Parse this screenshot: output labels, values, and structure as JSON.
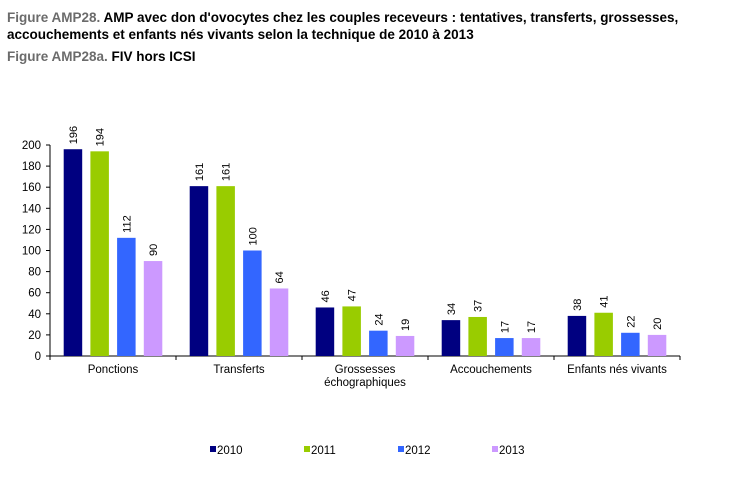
{
  "header": {
    "figure_prefix": "Figure AMP28.",
    "figure_title": " AMP avec don d'ovocytes chez les couples receveurs : tentatives, transferts, grossesses, accouchements et enfants nés vivants selon la technique de 2010 à 2013",
    "subfigure_prefix": "Figure AMP28a.",
    "subfigure_title": " FIV hors ICSI"
  },
  "chart_data": {
    "type": "bar",
    "categories": [
      [
        "Ponctions"
      ],
      [
        "Transferts"
      ],
      [
        "Grossesses",
        "échographiques"
      ],
      [
        "Accouchements"
      ],
      [
        "Enfants nés vivants"
      ]
    ],
    "series": [
      {
        "name": "2010",
        "color": "#000080",
        "values": [
          196,
          161,
          46,
          34,
          38
        ]
      },
      {
        "name": "2011",
        "color": "#99cc00",
        "values": [
          194,
          161,
          47,
          37,
          41
        ]
      },
      {
        "name": "2012",
        "color": "#3366ff",
        "values": [
          112,
          100,
          24,
          17,
          22
        ]
      },
      {
        "name": "2013",
        "color": "#cc99ff",
        "values": [
          90,
          64,
          19,
          17,
          20
        ]
      }
    ],
    "ylim": [
      0,
      200
    ],
    "yticks": [
      0,
      20,
      40,
      60,
      80,
      100,
      120,
      140,
      160,
      180,
      200
    ],
    "grid": false,
    "legend_position": "bottom",
    "data_labels": true,
    "data_label_rotation": "vertical"
  }
}
